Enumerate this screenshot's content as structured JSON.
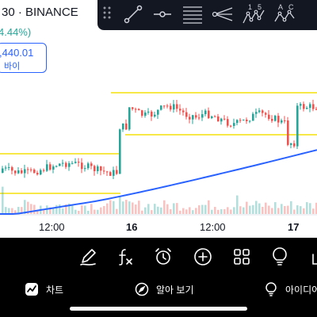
{
  "header": {
    "symbol": "30 · BINANCE",
    "change": "4.44%)",
    "price": ",440.01",
    "price_action": "바이"
  },
  "x_axis": {
    "labels": [
      "12:00",
      "16",
      "12:00",
      "17"
    ]
  },
  "drawing_toolbar": {
    "tools": [
      "drag-handle",
      "trend-line",
      "horizontal-ray",
      "fib-retracement",
      "pitchfork",
      "elliott-wave",
      "xabcd-pattern"
    ],
    "wave_labels": [
      "1",
      "5"
    ],
    "pattern_labels": [
      "A",
      "C"
    ]
  },
  "bottom_toolbar": {
    "icons": [
      "pen-icon",
      "fx-icon",
      "alarm-icon",
      "plus-circle-icon",
      "grid-icon",
      "lightbulb-icon",
      "share-icon"
    ]
  },
  "tabs": [
    {
      "label": "차트",
      "icon": "chart-icon"
    },
    {
      "label": "알아 보기",
      "icon": "compass-icon"
    },
    {
      "label": "아이디어",
      "icon": "idea-icon"
    }
  ],
  "colors": {
    "up": "#26a69a",
    "down": "#ef5350",
    "moving_average": "#2962ff",
    "support_resistance": "#f5e10a",
    "toolbar_bg": "#131722"
  }
}
